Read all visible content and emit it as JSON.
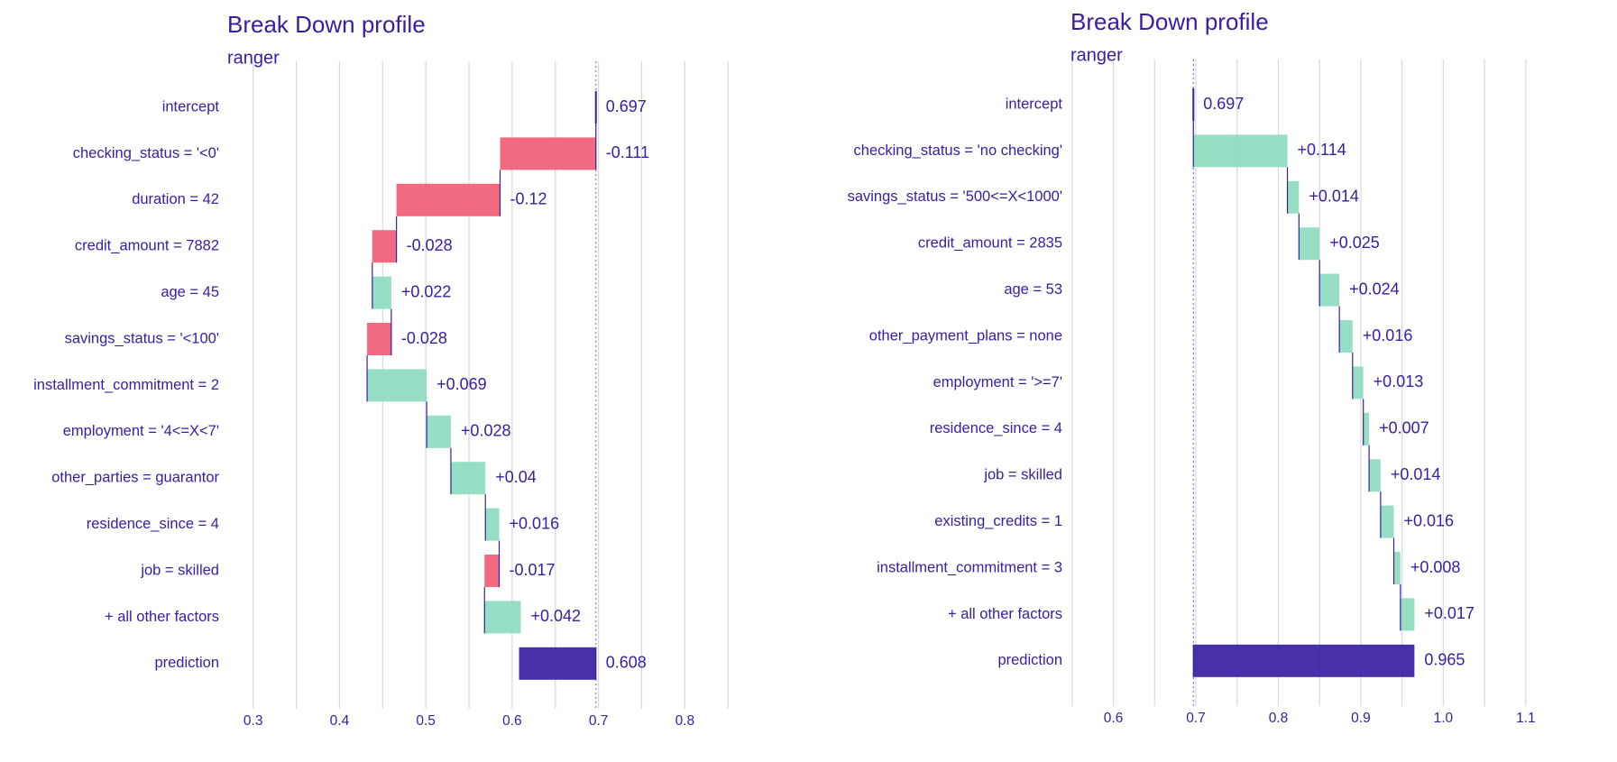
{
  "chart_data": [
    {
      "type": "bar",
      "chart_kind": "waterfall",
      "title": "Break Down profile",
      "subtitle": "ranger",
      "xlim": [
        0.27,
        0.855
      ],
      "ticks": [
        0.3,
        0.4,
        0.5,
        0.6,
        0.7,
        0.8
      ],
      "tick_labels": [
        "0.3",
        "0.4",
        "0.5",
        "0.6",
        "0.7",
        "0.8"
      ],
      "baseline": 0.697,
      "rows": [
        {
          "variable": "intercept",
          "contribution": 0.697,
          "label": "0.697",
          "kind": "intercept"
        },
        {
          "variable": "checking_status = '<0'",
          "contribution": -0.111,
          "label": "-0.111",
          "kind": "negative"
        },
        {
          "variable": "duration = 42",
          "contribution": -0.12,
          "label": "-0.12",
          "kind": "negative"
        },
        {
          "variable": "credit_amount = 7882",
          "contribution": -0.028,
          "label": "-0.028",
          "kind": "negative"
        },
        {
          "variable": "age = 45",
          "contribution": 0.022,
          "label": "+0.022",
          "kind": "positive"
        },
        {
          "variable": "savings_status = '<100'",
          "contribution": -0.028,
          "label": "-0.028",
          "kind": "negative"
        },
        {
          "variable": "installment_commitment = 2",
          "contribution": 0.069,
          "label": "+0.069",
          "kind": "positive"
        },
        {
          "variable": "employment = '4<=X<7'",
          "contribution": 0.028,
          "label": "+0.028",
          "kind": "positive"
        },
        {
          "variable": "other_parties = guarantor",
          "contribution": 0.04,
          "label": "+0.04",
          "kind": "positive"
        },
        {
          "variable": "residence_since = 4",
          "contribution": 0.016,
          "label": "+0.016",
          "kind": "positive"
        },
        {
          "variable": "job = skilled",
          "contribution": -0.017,
          "label": "-0.017",
          "kind": "negative"
        },
        {
          "variable": "+ all other factors",
          "contribution": 0.042,
          "label": "+0.042",
          "kind": "positive"
        },
        {
          "variable": "prediction",
          "contribution": 0.608,
          "label": "0.608",
          "kind": "prediction"
        }
      ]
    },
    {
      "type": "bar",
      "chart_kind": "waterfall",
      "title": "Break Down profile",
      "subtitle": "ranger",
      "xlim": [
        0.548,
        1.145
      ],
      "ticks": [
        0.6,
        0.7,
        0.8,
        0.9,
        1.0,
        1.1
      ],
      "tick_labels": [
        "0.6",
        "0.7",
        "0.8",
        "0.9",
        "1.0",
        "1.1"
      ],
      "baseline": 0.697,
      "rows": [
        {
          "variable": "intercept",
          "contribution": 0.697,
          "label": "0.697",
          "kind": "intercept"
        },
        {
          "variable": "checking_status = 'no checking'",
          "contribution": 0.114,
          "label": "+0.114",
          "kind": "positive"
        },
        {
          "variable": "savings_status = '500<=X<1000'",
          "contribution": 0.014,
          "label": "+0.014",
          "kind": "positive"
        },
        {
          "variable": "credit_amount = 2835",
          "contribution": 0.025,
          "label": "+0.025",
          "kind": "positive"
        },
        {
          "variable": "age = 53",
          "contribution": 0.024,
          "label": "+0.024",
          "kind": "positive"
        },
        {
          "variable": "other_payment_plans = none",
          "contribution": 0.016,
          "label": "+0.016",
          "kind": "positive"
        },
        {
          "variable": "employment = '>=7'",
          "contribution": 0.013,
          "label": "+0.013",
          "kind": "positive"
        },
        {
          "variable": "residence_since = 4",
          "contribution": 0.007,
          "label": "+0.007",
          "kind": "positive"
        },
        {
          "variable": "job = skilled",
          "contribution": 0.014,
          "label": "+0.014",
          "kind": "positive"
        },
        {
          "variable": "existing_credits = 1",
          "contribution": 0.016,
          "label": "+0.016",
          "kind": "positive"
        },
        {
          "variable": "installment_commitment = 3",
          "contribution": 0.008,
          "label": "+0.008",
          "kind": "positive"
        },
        {
          "variable": "+ all other factors",
          "contribution": 0.017,
          "label": "+0.017",
          "kind": "positive"
        },
        {
          "variable": "prediction",
          "contribution": 0.965,
          "label": "0.965",
          "kind": "prediction"
        }
      ]
    }
  ],
  "colors": {
    "text": "#371ea3",
    "positive": "#8bdcbe",
    "negative": "#f05a71",
    "prediction": "#371ea3",
    "grid": "#d7d9e2",
    "connector": "#371ea3"
  }
}
